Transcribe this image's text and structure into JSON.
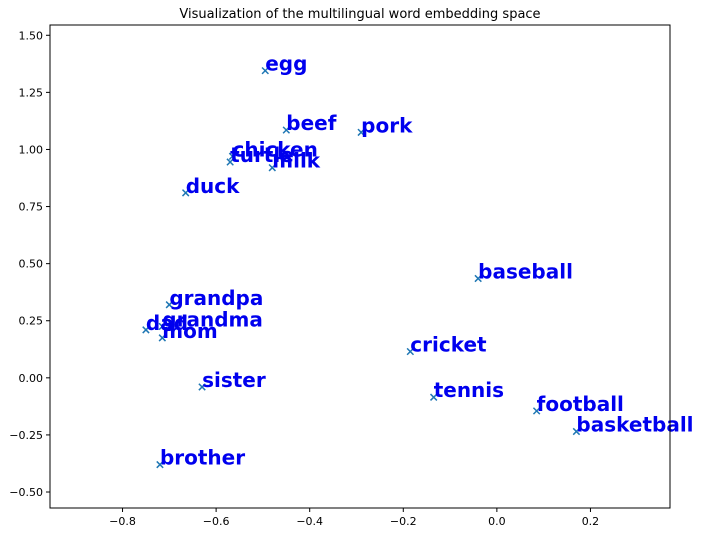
{
  "chart_data": {
    "type": "scatter",
    "title": "Visualization of the multilingual word embedding space",
    "xlabel": "",
    "ylabel": "",
    "xlim": [
      -0.955,
      0.37
    ],
    "ylim": [
      -0.57,
      1.545
    ],
    "x_ticks": [
      -0.8,
      -0.6,
      -0.4,
      -0.2,
      0.0,
      0.2
    ],
    "x_tick_labels": [
      "−0.8",
      "−0.6",
      "−0.4",
      "−0.2",
      "0.0",
      "0.2"
    ],
    "y_ticks": [
      1.5,
      1.25,
      1.0,
      0.75,
      0.5,
      0.25,
      0.0,
      -0.25,
      -0.5
    ],
    "y_tick_labels": [
      "1.50",
      "1.25",
      "1.00",
      "0.75",
      "0.50",
      "0.25",
      "0.00",
      "−0.25",
      "−0.50"
    ],
    "grid": false,
    "marker": "x",
    "marker_color": "#1f77b4",
    "label_color": "#0000ee",
    "points": [
      {
        "label": "egg",
        "x": -0.495,
        "y": 1.345
      },
      {
        "label": "beef",
        "x": -0.45,
        "y": 1.085
      },
      {
        "label": "pork",
        "x": -0.29,
        "y": 1.075
      },
      {
        "label": "chicken",
        "x": -0.565,
        "y": 0.97
      },
      {
        "label": "turtle",
        "x": -0.57,
        "y": 0.945
      },
      {
        "label": "milk",
        "x": -0.48,
        "y": 0.92
      },
      {
        "label": "duck",
        "x": -0.665,
        "y": 0.81
      },
      {
        "label": "baseball",
        "x": -0.04,
        "y": 0.435
      },
      {
        "label": "grandpa",
        "x": -0.7,
        "y": 0.32
      },
      {
        "label": "grandma",
        "x": -0.715,
        "y": 0.225
      },
      {
        "label": "dad",
        "x": -0.75,
        "y": 0.21
      },
      {
        "label": "mom",
        "x": -0.715,
        "y": 0.175
      },
      {
        "label": "cricket",
        "x": -0.185,
        "y": 0.115
      },
      {
        "label": "sister",
        "x": -0.63,
        "y": -0.04
      },
      {
        "label": "tennis",
        "x": -0.135,
        "y": -0.085
      },
      {
        "label": "football",
        "x": 0.085,
        "y": -0.145
      },
      {
        "label": "basketball",
        "x": 0.17,
        "y": -0.235
      },
      {
        "label": "brother",
        "x": -0.72,
        "y": -0.38
      }
    ]
  }
}
